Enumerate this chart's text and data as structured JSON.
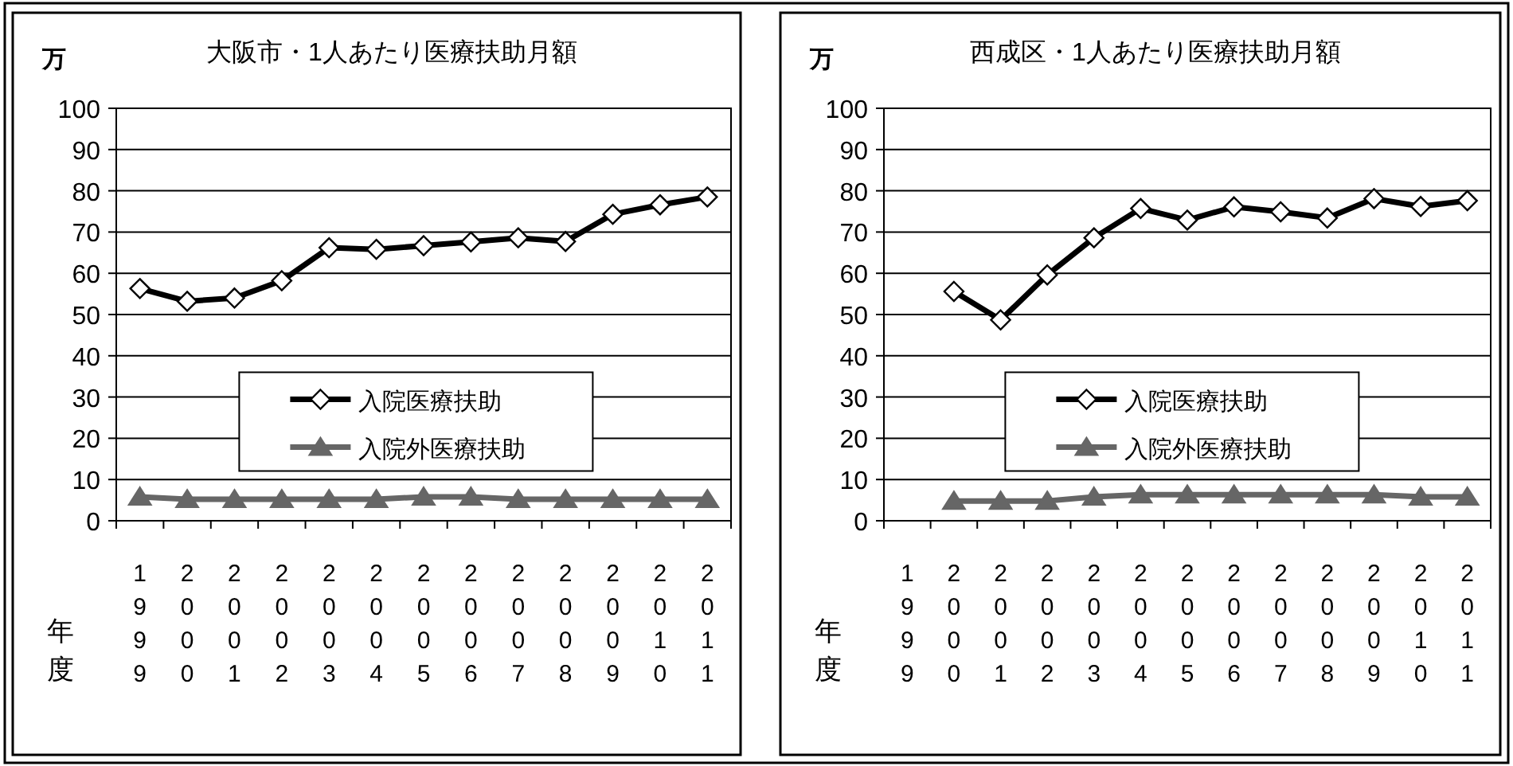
{
  "chart_data": [
    {
      "type": "line",
      "title": "大阪市・1人あたり医療扶助月額",
      "ylabel": "万",
      "xlabel": "年度",
      "categories": [
        "1999",
        "2000",
        "2001",
        "2002",
        "2003",
        "2004",
        "2005",
        "2006",
        "2007",
        "2008",
        "2009",
        "2010",
        "2011"
      ],
      "series": [
        {
          "name": "入院医療扶助",
          "color": "#000000",
          "marker": "diamond",
          "values": [
            56.3,
            53.2,
            54.0,
            58.2,
            66.2,
            65.8,
            66.7,
            67.6,
            68.6,
            67.7,
            74.3,
            76.6,
            78.5
          ]
        },
        {
          "name": "入院外医療扶助",
          "color": "#666666",
          "marker": "triangle",
          "values": [
            5.8,
            5.2,
            5.2,
            5.2,
            5.2,
            5.2,
            5.8,
            5.8,
            5.2,
            5.2,
            5.2,
            5.2,
            5.2
          ]
        }
      ],
      "ylim": [
        0,
        100
      ],
      "yticks": [
        0,
        10,
        20,
        30,
        40,
        50,
        60,
        70,
        80,
        90,
        100
      ],
      "grid": "y",
      "legend": "center",
      "line_style": "solid"
    },
    {
      "type": "line",
      "title": "西成区・1人あたり医療扶助月額",
      "ylabel": "万",
      "xlabel": "年度",
      "categories": [
        "1999",
        "2000",
        "2001",
        "2002",
        "2003",
        "2004",
        "2005",
        "2006",
        "2007",
        "2008",
        "2009",
        "2010",
        "2011"
      ],
      "series": [
        {
          "name": "入院医療扶助",
          "color": "#000000",
          "marker": "diamond",
          "values": [
            null,
            55.6,
            48.7,
            59.6,
            68.6,
            75.7,
            72.9,
            76.1,
            74.9,
            73.4,
            78.1,
            76.2,
            77.6
          ]
        },
        {
          "name": "入院外医療扶助",
          "color": "#666666",
          "marker": "triangle",
          "values": [
            null,
            4.8,
            4.8,
            4.8,
            5.8,
            6.3,
            6.3,
            6.3,
            6.3,
            6.3,
            6.3,
            5.8,
            5.8
          ]
        }
      ],
      "ylim": [
        0,
        100
      ],
      "yticks": [
        0,
        10,
        20,
        30,
        40,
        50,
        60,
        70,
        80,
        90,
        100
      ],
      "grid": "y",
      "legend": "center",
      "line_style": "solid"
    }
  ]
}
